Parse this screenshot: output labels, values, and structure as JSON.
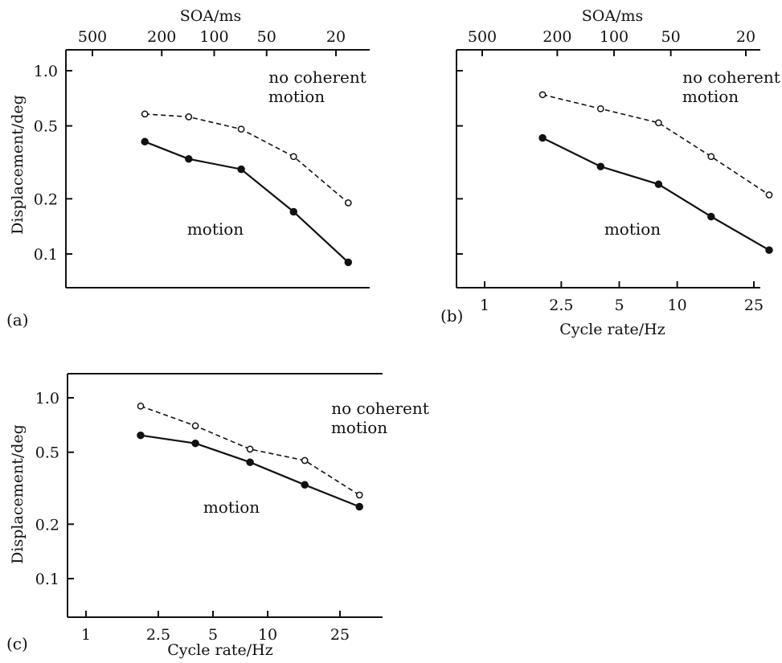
{
  "chart_data": [
    {
      "type": "line",
      "panel_label": "(a)",
      "xlabel": "",
      "top_axis_label": "SOA/ms",
      "ylabel": "Displacement/deg",
      "yscale": "log",
      "ylim": [
        0.07,
        1.2
      ],
      "yticks": [
        1.0,
        0.5,
        0.2,
        0.1
      ],
      "ytick_labels": [
        "1.0",
        "0.5",
        "0.2",
        "0.1"
      ],
      "xscale": "log",
      "top_ticks": [
        500,
        200,
        100,
        50,
        20
      ],
      "top_tick_labels": [
        "500",
        "200",
        "100",
        "50",
        "20"
      ],
      "series": [
        {
          "style": "dashed",
          "marker": "open-circle",
          "x": [
            250,
            140,
            70,
            35,
            17
          ],
          "y": [
            0.58,
            0.56,
            0.48,
            0.34,
            0.19
          ]
        },
        {
          "style": "solid",
          "marker": "filled-circle",
          "x": [
            250,
            140,
            70,
            35,
            17
          ],
          "y": [
            0.41,
            0.33,
            0.29,
            0.17,
            0.09
          ]
        }
      ],
      "annotations": [
        {
          "line1": "no coherent",
          "line2": "motion"
        },
        {
          "line1": "motion",
          "line2": ""
        }
      ]
    },
    {
      "type": "line",
      "panel_label": "(b)",
      "xlabel": "Cycle rate/Hz",
      "top_axis_label": "SOA/ms",
      "ylabel": "",
      "yscale": "log",
      "ylim": [
        0.07,
        1.2
      ],
      "yticks": [
        1.0,
        0.5,
        0.2,
        0.1
      ],
      "ytick_labels": [
        "",
        "",
        "",
        ""
      ],
      "xscale": "log",
      "xticks": [
        1,
        2.5,
        5,
        10,
        25
      ],
      "xtick_labels": [
        "1",
        "2.5",
        "5",
        "10",
        "25"
      ],
      "top_ticks": [
        500,
        200,
        100,
        50,
        20
      ],
      "top_tick_labels": [
        "500",
        "200",
        "100",
        "50",
        "20"
      ],
      "series": [
        {
          "style": "dashed",
          "marker": "open-circle",
          "x": [
            2,
            4,
            8,
            15,
            30
          ],
          "y": [
            0.74,
            0.62,
            0.52,
            0.34,
            0.21
          ]
        },
        {
          "style": "solid",
          "marker": "filled-circle",
          "x": [
            2,
            4,
            8,
            15,
            30
          ],
          "y": [
            0.43,
            0.3,
            0.24,
            0.16,
            0.105
          ]
        }
      ],
      "annotations": [
        {
          "line1": "no coherent",
          "line2": "motion"
        },
        {
          "line1": "motion",
          "line2": ""
        }
      ]
    },
    {
      "type": "line",
      "panel_label": "(c)",
      "xlabel": "Cycle rate/Hz",
      "top_axis_label": "",
      "ylabel": "Displacement/deg",
      "yscale": "log",
      "ylim": [
        0.07,
        1.2
      ],
      "yticks": [
        1.0,
        0.5,
        0.2,
        0.1
      ],
      "ytick_labels": [
        "1.0",
        "0.5",
        "0.2",
        "0.1"
      ],
      "xscale": "log",
      "xticks": [
        1,
        2.5,
        5,
        10,
        25
      ],
      "xtick_labels": [
        "1",
        "2.5",
        "5",
        "10",
        "25"
      ],
      "series": [
        {
          "style": "dashed",
          "marker": "open-circle",
          "x": [
            2,
            4,
            8,
            16,
            32
          ],
          "y": [
            0.9,
            0.7,
            0.52,
            0.45,
            0.29
          ]
        },
        {
          "style": "solid",
          "marker": "filled-circle",
          "x": [
            2,
            4,
            8,
            16,
            32
          ],
          "y": [
            0.62,
            0.56,
            0.44,
            0.33,
            0.25
          ]
        }
      ],
      "annotations": [
        {
          "line1": "no coherent",
          "line2": "motion"
        },
        {
          "line1": "motion",
          "line2": ""
        }
      ]
    }
  ]
}
